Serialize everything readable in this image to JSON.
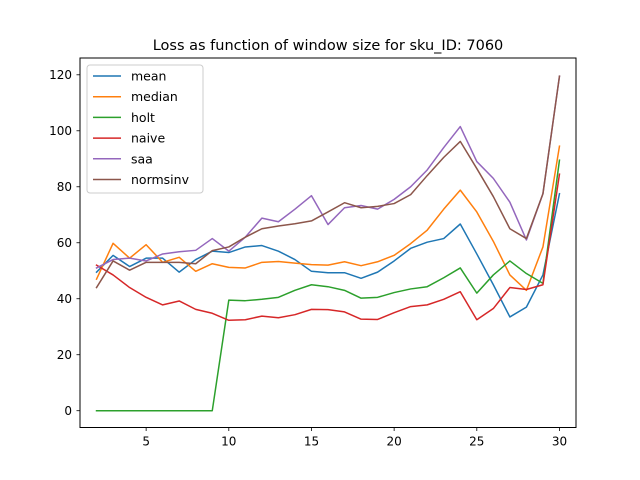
{
  "chart_data": {
    "type": "line",
    "title": "Loss as function of window size for sku_ID: 7060",
    "xlabel": "",
    "ylabel": "",
    "xlim": [
      1,
      31
    ],
    "ylim": [
      -6,
      126
    ],
    "xticks": [
      5,
      10,
      15,
      20,
      25,
      30
    ],
    "yticks": [
      0,
      20,
      40,
      60,
      80,
      100,
      120
    ],
    "grid": false,
    "legend_position": "top-left",
    "x": [
      2,
      3,
      4,
      5,
      6,
      7,
      8,
      9,
      10,
      11,
      12,
      13,
      14,
      15,
      16,
      17,
      18,
      19,
      20,
      21,
      22,
      23,
      24,
      25,
      26,
      27,
      28,
      29,
      30
    ],
    "series": [
      {
        "name": "mean",
        "color": "#1f77b4",
        "values": [
          49.5,
          55.5,
          51.5,
          54.5,
          54.5,
          49.5,
          54,
          57,
          56.5,
          58.5,
          59,
          57,
          54,
          49.8,
          49.3,
          49.3,
          47.3,
          49.5,
          53.5,
          58,
          60.2,
          61.5,
          66.7,
          56,
          45,
          33.5,
          37,
          48.5,
          77.5
        ]
      },
      {
        "name": "median",
        "color": "#ff7f0e",
        "values": [
          47,
          59.8,
          54.5,
          59.3,
          53,
          54.8,
          49.8,
          52.5,
          51.2,
          51,
          53,
          53.3,
          52.7,
          52.2,
          52,
          53.2,
          51.8,
          53.2,
          55.5,
          59.7,
          64.5,
          72,
          78.8,
          71,
          60.5,
          48.5,
          43,
          58.5,
          94.5
        ]
      },
      {
        "name": "holt",
        "color": "#2ca02c",
        "values": [
          0,
          0,
          0,
          0,
          0,
          0,
          0,
          0,
          39.5,
          39.3,
          39.8,
          40.5,
          43,
          45,
          44.3,
          43,
          40.2,
          40.5,
          42.2,
          43.5,
          44.3,
          47.5,
          51,
          42,
          48.5,
          53.5,
          49,
          45.5,
          89.5
        ]
      },
      {
        "name": "naive",
        "color": "#d62728",
        "values": [
          52,
          48.5,
          44,
          40.5,
          37.8,
          39.2,
          36.2,
          34.8,
          32.3,
          32.5,
          33.8,
          33.2,
          34.3,
          36.2,
          36.1,
          35.3,
          32.7,
          32.6,
          35,
          37.2,
          37.8,
          39.8,
          42.5,
          32.5,
          36.5,
          44,
          43.3,
          45,
          84.5
        ]
      },
      {
        "name": "saa",
        "color": "#9467bd",
        "values": [
          51,
          54,
          54.5,
          53.5,
          56,
          56.8,
          57.3,
          61.5,
          57,
          62,
          68.8,
          67.5,
          72,
          76.8,
          66.5,
          72.5,
          73.3,
          72,
          75.5,
          80,
          86,
          94,
          101.5,
          89,
          83,
          74.5,
          61,
          77.5,
          119.5
        ]
      },
      {
        "name": "normsinv",
        "color": "#8c564b",
        "values": [
          44,
          53.5,
          50.2,
          53,
          53,
          53,
          52.5,
          57.2,
          58.5,
          62,
          65,
          66,
          66.8,
          67.8,
          71,
          74.3,
          72.5,
          73,
          74,
          77.2,
          84,
          90.5,
          96.2,
          86.5,
          76.5,
          65,
          61.5,
          77.5,
          119.5
        ]
      }
    ]
  }
}
